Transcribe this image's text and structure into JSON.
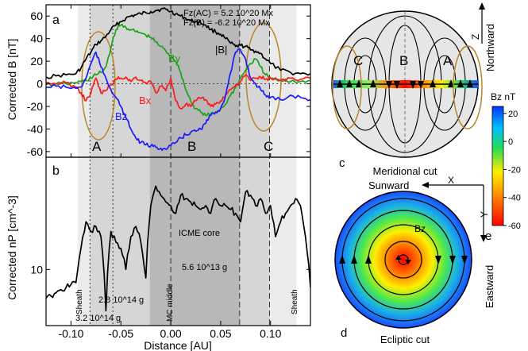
{
  "panel_a": {
    "label": "a",
    "ylabel": "Corrected B [nT]",
    "annotation_line1": "Fz(AC) = 5.2 10^20 Mx",
    "annotation_line2": "Fz(B) = -6.2 10^20 Mx",
    "series_labels": {
      "B": "|B|",
      "By": "By",
      "Bx": "Bx",
      "Bz": "Bz"
    },
    "region_labels": [
      "A",
      "B",
      "C"
    ]
  },
  "panel_b": {
    "label": "b",
    "ylabel": "Corrected nP [cm^-3]",
    "texts": {
      "sheath_left": "Sheath",
      "sheath_right": "Sheath",
      "mc_middle": "MC middle",
      "icme_core": "ICME core",
      "mass_1": "2.8 10^14 g",
      "mass_2": "3.2 10^14 g",
      "mass_3": "5.6 10^13 g"
    }
  },
  "xlabel": "Distance [AU]",
  "panel_c": {
    "label": "c",
    "caption": "Meridional cut",
    "axis": "Z",
    "direction": "Northward",
    "regions": [
      "C",
      "B",
      "A"
    ]
  },
  "panel_d": {
    "label": "d",
    "caption": "Ecliptic cut",
    "x_axis": "X",
    "y_axis": "Y",
    "direction_sun": "Sunward",
    "direction_east": "Eastward",
    "bz_label": "Bz"
  },
  "panel_e": {
    "label": "e"
  },
  "colorbar": {
    "title": "Bz nT",
    "ticks": [
      20,
      0,
      -20,
      -40,
      -60
    ],
    "range": [
      -60,
      25
    ]
  },
  "colors": {
    "B": "#000000",
    "Bx": "#ff1a1a",
    "By": "#1aa31a",
    "Bz": "#1a1aff",
    "sheath_fill": "#ebebeb",
    "ab_fill": "#d6d6d6",
    "core_fill": "#b8b8b8",
    "ellipse": "#b8862b"
  },
  "chart_data": [
    {
      "type": "line",
      "title": "",
      "xlabel": "",
      "ylabel": "Corrected B [nT]",
      "xlim": [
        -0.125,
        0.14
      ],
      "ylim": [
        -65,
        70
      ],
      "x_ticks": [
        -0.1,
        -0.05,
        0.0,
        0.05,
        0.1
      ],
      "y_ticks": [
        -60,
        -40,
        -20,
        0,
        20,
        40,
        60
      ],
      "x_tick_labels": [
        "-0.10",
        "-0.05",
        "0.00",
        "0.05",
        "0.10"
      ],
      "shaded_intervals": [
        {
          "from": -0.093,
          "to": 0.126,
          "level": "sheath"
        },
        {
          "from": -0.081,
          "to": 0.099,
          "level": "ab"
        },
        {
          "from": -0.021,
          "to": 0.069,
          "level": "core"
        }
      ],
      "vertical_lines": [
        {
          "x": -0.081,
          "style": "dotted"
        },
        {
          "x": -0.058,
          "style": "dotted"
        },
        {
          "x": 0.0,
          "style": "dashed"
        },
        {
          "x": 0.069,
          "style": "dashed"
        },
        {
          "x": 0.099,
          "style": "dashed"
        }
      ],
      "x": [
        -0.125,
        -0.115,
        -0.105,
        -0.095,
        -0.09,
        -0.085,
        -0.08,
        -0.075,
        -0.07,
        -0.065,
        -0.06,
        -0.055,
        -0.05,
        -0.045,
        -0.04,
        -0.035,
        -0.03,
        -0.025,
        -0.02,
        -0.015,
        -0.01,
        -0.005,
        0.0,
        0.005,
        0.01,
        0.015,
        0.02,
        0.025,
        0.03,
        0.035,
        0.04,
        0.045,
        0.05,
        0.055,
        0.06,
        0.065,
        0.07,
        0.075,
        0.08,
        0.085,
        0.09,
        0.095,
        0.1,
        0.11,
        0.12,
        0.13,
        0.14
      ],
      "series": [
        {
          "name": "|B|",
          "values": [
            6,
            7,
            8,
            9,
            14,
            22,
            28,
            35,
            38,
            42,
            48,
            52,
            55,
            58,
            60,
            61,
            62,
            63,
            64,
            65,
            66,
            66,
            64,
            62,
            60,
            58,
            56,
            55,
            54,
            52,
            48,
            46,
            44,
            40,
            36,
            33,
            34,
            33,
            30,
            29,
            27,
            22,
            18,
            12,
            10,
            9,
            9
          ]
        },
        {
          "name": "By",
          "values": [
            -1,
            0,
            0,
            1,
            2,
            3,
            5,
            8,
            10,
            15,
            32,
            48,
            52,
            50,
            48,
            46,
            45,
            43,
            41,
            37,
            33,
            29,
            25,
            20,
            10,
            -5,
            -15,
            -22,
            -25,
            -28,
            -27,
            -25,
            -22,
            -18,
            -10,
            -3,
            5,
            12,
            18,
            22,
            15,
            8,
            5,
            3,
            2,
            2,
            3
          ]
        },
        {
          "name": "Bx",
          "values": [
            1,
            0,
            1,
            -3,
            -8,
            -15,
            -8,
            5,
            -8,
            -6,
            -1,
            4,
            5,
            6,
            2,
            6,
            3,
            1,
            2,
            -8,
            -2,
            -6,
            5,
            -15,
            -22,
            -18,
            -20,
            -15,
            -13,
            -14,
            -20,
            -18,
            -15,
            -10,
            -5,
            -1,
            2,
            8,
            3,
            5,
            6,
            4,
            5,
            3,
            5,
            4,
            5
          ]
        },
        {
          "name": "Bz",
          "values": [
            -3,
            -2,
            -3,
            -4,
            -3,
            5,
            18,
            28,
            15,
            5,
            -5,
            -12,
            -20,
            -30,
            -40,
            -48,
            -52,
            -54,
            -55,
            -56,
            -57,
            -58,
            -55,
            -52,
            -48,
            -45,
            -43,
            -42,
            -40,
            -35,
            -28,
            -25,
            -22,
            -10,
            10,
            28,
            30,
            22,
            5,
            0,
            -5,
            -10,
            -12,
            -14,
            -10,
            -12,
            -14
          ]
        }
      ]
    },
    {
      "type": "line",
      "title": "",
      "xlabel": "Distance [AU]",
      "ylabel": "Corrected nP [cm^-3]",
      "xlim": [
        -0.125,
        0.14
      ],
      "y_scale": "log",
      "ylim": [
        5,
        40
      ],
      "y_ticks": [
        10
      ],
      "x_ticks": [
        -0.1,
        -0.05,
        0.0,
        0.05,
        0.1
      ],
      "x_tick_labels": [
        "-0.10",
        "-0.05",
        "0.00",
        "0.05",
        "0.10"
      ],
      "x": [
        -0.125,
        -0.12,
        -0.115,
        -0.11,
        -0.105,
        -0.1,
        -0.095,
        -0.09,
        -0.085,
        -0.08,
        -0.075,
        -0.07,
        -0.065,
        -0.06,
        -0.055,
        -0.05,
        -0.045,
        -0.04,
        -0.035,
        -0.03,
        -0.025,
        -0.02,
        -0.015,
        -0.01,
        -0.005,
        0.0,
        0.005,
        0.01,
        0.015,
        0.02,
        0.025,
        0.03,
        0.035,
        0.04,
        0.045,
        0.05,
        0.055,
        0.06,
        0.065,
        0.07,
        0.075,
        0.08,
        0.085,
        0.09,
        0.095,
        0.1,
        0.105,
        0.11,
        0.115,
        0.12,
        0.125,
        0.13,
        0.135,
        0.14
      ],
      "series": [
        {
          "name": "nP",
          "values": [
            7,
            7.2,
            7.5,
            7.8,
            8,
            8.3,
            8.5,
            13,
            18,
            16,
            17,
            15,
            6,
            16,
            14,
            13,
            10,
            15,
            17,
            14,
            9,
            22,
            28,
            25,
            23,
            22,
            20,
            25,
            24,
            23,
            22,
            21,
            22,
            20,
            24,
            22,
            22,
            21,
            20,
            18,
            26,
            25,
            22,
            24,
            20,
            22,
            15,
            18,
            20,
            22,
            24,
            22,
            15,
            8
          ]
        }
      ]
    }
  ]
}
